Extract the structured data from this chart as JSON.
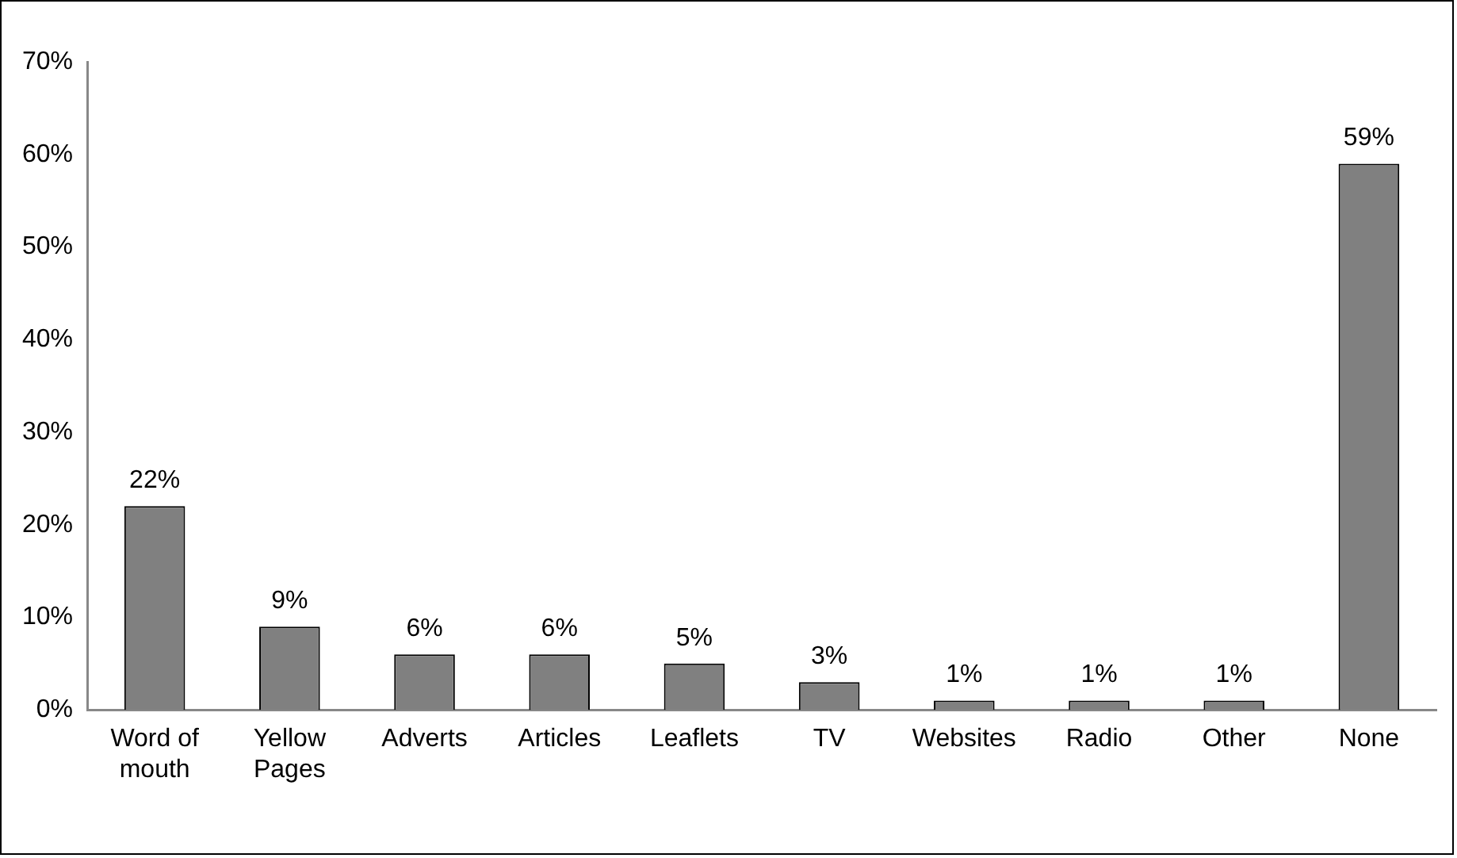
{
  "chart_data": {
    "type": "bar",
    "categories": [
      "Word of mouth",
      "Yellow Pages",
      "Adverts",
      "Articles",
      "Leaflets",
      "TV",
      "Websites",
      "Radio",
      "Other",
      "None"
    ],
    "values": [
      22,
      9,
      6,
      6,
      5,
      3,
      1,
      1,
      1,
      59
    ],
    "value_labels": [
      "22%",
      "9%",
      "6%",
      "6%",
      "5%",
      "3%",
      "1%",
      "1%",
      "1%",
      "59%"
    ],
    "color": "#808080",
    "ylim": [
      0,
      70
    ],
    "yticks": [
      {
        "value": 0,
        "label": "0%"
      },
      {
        "value": 10,
        "label": "10%"
      },
      {
        "value": 20,
        "label": "20%"
      },
      {
        "value": 30,
        "label": "30%"
      },
      {
        "value": 40,
        "label": "40%"
      },
      {
        "value": 50,
        "label": "50%"
      },
      {
        "value": 60,
        "label": "60%"
      },
      {
        "value": 70,
        "label": "70%"
      }
    ],
    "grid": false,
    "legend": false
  }
}
